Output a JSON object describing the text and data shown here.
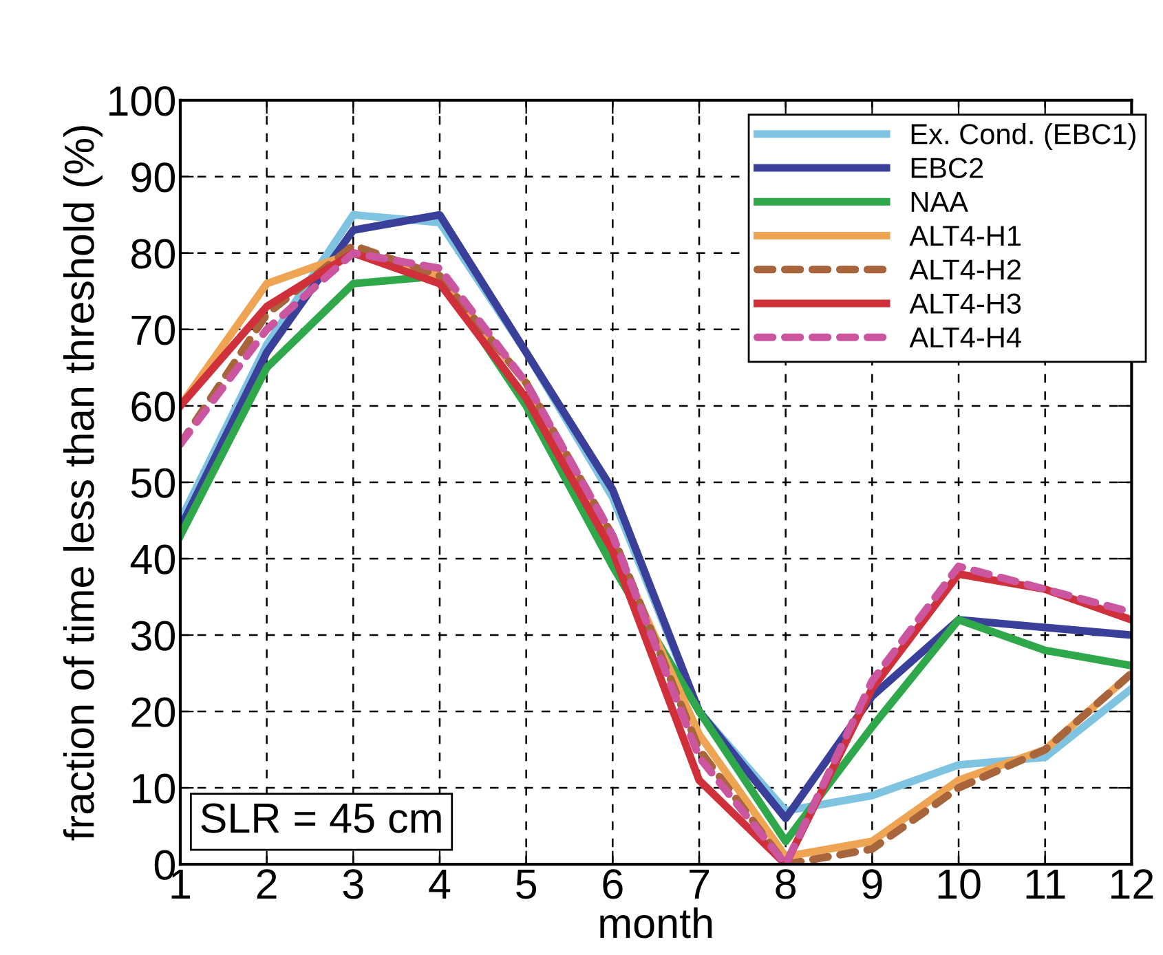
{
  "chart_data": {
    "type": "line",
    "xlabel": "month",
    "ylabel": "fraction of time less than threshold (%)",
    "x": [
      1,
      2,
      3,
      4,
      5,
      6,
      7,
      8,
      9,
      10,
      11,
      12
    ],
    "series": [
      {
        "name": "Ex. Cond. (EBC1)",
        "color": "#7ec3e0",
        "values": [
          45,
          68,
          85,
          84,
          67,
          48,
          20,
          7,
          9,
          13,
          14,
          23
        ]
      },
      {
        "name": "EBC2",
        "color": "#3a3f9a",
        "values": [
          44,
          67,
          83,
          85,
          67,
          49,
          20,
          6,
          22,
          32,
          31,
          30
        ]
      },
      {
        "name": "NAA",
        "color": "#2ea84a",
        "values": [
          43,
          65,
          76,
          77,
          60,
          39,
          20,
          3,
          18,
          32,
          28,
          26
        ]
      },
      {
        "name": "ALT4-H1",
        "color": "#eea452",
        "values": [
          60,
          76,
          80,
          77,
          63,
          42,
          17,
          1,
          3,
          11,
          15,
          25
        ]
      },
      {
        "name": "ALT4-H2",
        "color": "#a8643a",
        "line_style": "dashed",
        "values": [
          55,
          72,
          81,
          77,
          63,
          43,
          15,
          0,
          2,
          10,
          15,
          25
        ]
      },
      {
        "name": "ALT4-H3",
        "color": "#d0303a",
        "values": [
          60,
          73,
          80,
          76,
          61,
          41,
          11,
          0,
          23,
          38,
          36,
          32
        ]
      },
      {
        "name": "ALT4-H4",
        "color": "#cc55a0",
        "line_style": "dashed",
        "values": [
          55,
          70,
          80,
          78,
          63,
          43,
          14,
          0,
          24,
          39,
          36,
          33
        ]
      }
    ],
    "xlim": [
      1,
      12
    ],
    "xticks": [
      1,
      2,
      3,
      4,
      5,
      6,
      7,
      8,
      9,
      10,
      11,
      12
    ],
    "ylim": [
      0,
      100
    ],
    "yticks": [
      0,
      10,
      20,
      30,
      40,
      50,
      60,
      70,
      80,
      90,
      100
    ],
    "grid": true,
    "legend": "top right",
    "line_style": "solid",
    "marker": "none",
    "annotations": [
      "SLR = 45 cm"
    ]
  }
}
